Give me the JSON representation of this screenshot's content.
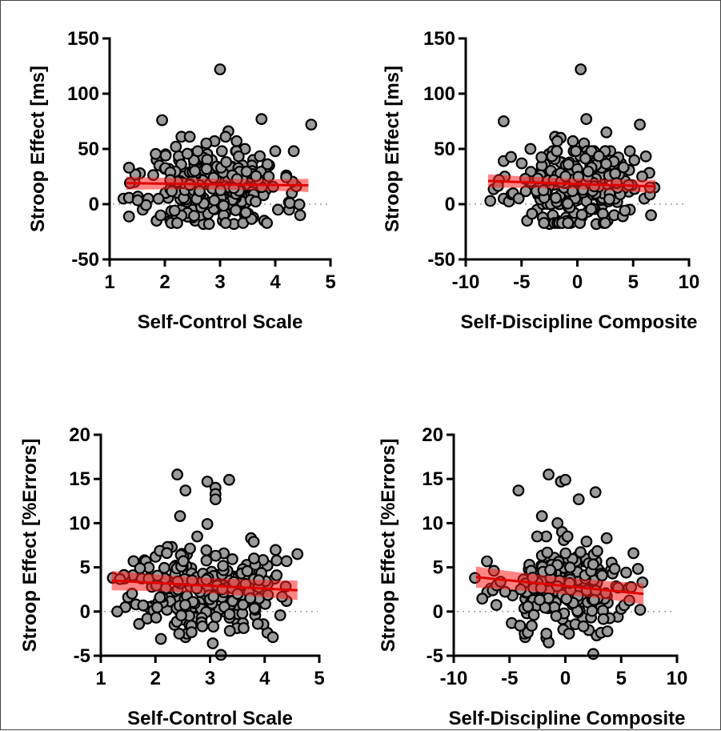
{
  "chart_data": [
    {
      "type": "scatter",
      "xlabel": "Self-Control Scale",
      "ylabel": "Stroop  Effect [ms]",
      "xlim": [
        1,
        5
      ],
      "ylim": [
        -50,
        150
      ],
      "xticks": [
        "1",
        "2",
        "3",
        "4",
        "5"
      ],
      "yticks": [
        "-50",
        "0",
        "50",
        "100",
        "150"
      ],
      "reference_line_y": 0,
      "regression": {
        "x": [
          1.3,
          4.6
        ],
        "y": [
          19,
          17
        ],
        "ci_halfwidth": 6
      },
      "n_points": 260,
      "points": [
        [
          3.0,
          122
        ],
        [
          1.95,
          76
        ],
        [
          3.75,
          77
        ],
        [
          4.65,
          72
        ],
        [
          3.15,
          66
        ],
        [
          3.1,
          61
        ],
        [
          2.3,
          61
        ],
        [
          2.45,
          61
        ],
        [
          2.9,
          57
        ],
        [
          3.3,
          57
        ],
        [
          2.75,
          55
        ],
        [
          4.0,
          48
        ],
        [
          2.2,
          52
        ],
        [
          3.45,
          50
        ],
        [
          1.85,
          40
        ],
        [
          2.85,
          40
        ],
        [
          3.6,
          40
        ],
        [
          1.9,
          35
        ],
        [
          2.0,
          32
        ],
        [
          4.2,
          26
        ],
        [
          1.25,
          5
        ],
        [
          1.7,
          5
        ],
        [
          1.55,
          28
        ],
        [
          2.1,
          -15
        ],
        [
          2.15,
          -10
        ],
        [
          1.85,
          -15
        ],
        [
          2.55,
          -15
        ],
        [
          2.7,
          -18
        ],
        [
          3.05,
          -15
        ],
        [
          3.25,
          -18
        ],
        [
          3.6,
          -12
        ],
        [
          3.8,
          -15
        ],
        [
          3.85,
          -17
        ],
        [
          4.45,
          -10
        ],
        [
          4.3,
          10
        ],
        [
          4.25,
          -5
        ],
        [
          1.45,
          20
        ],
        [
          1.6,
          -5
        ],
        [
          2.35,
          -2
        ],
        [
          2.5,
          -12
        ],
        [
          2.65,
          -10
        ],
        [
          3.45,
          -10
        ],
        [
          4.05,
          -5
        ],
        [
          2.8,
          -18
        ]
      ],
      "seed": 11
    },
    {
      "type": "scatter",
      "xlabel": "Self-Discipline Composite",
      "ylabel": "Stroop Effect [ms]",
      "xlim": [
        -10,
        10
      ],
      "ylim": [
        -50,
        150
      ],
      "xticks": [
        "-10",
        "-5",
        "0",
        "5",
        "10"
      ],
      "yticks": [
        "-50",
        "0",
        "50",
        "100",
        "150"
      ],
      "reference_line_y": 0,
      "regression": {
        "x": [
          -8,
          7
        ],
        "y": [
          21,
          16
        ],
        "ci_halfwidth": 6
      },
      "n_points": 260,
      "points": [
        [
          0.3,
          122
        ],
        [
          -6.6,
          75
        ],
        [
          0.8,
          77
        ],
        [
          5.6,
          72
        ],
        [
          2.6,
          65
        ],
        [
          -2.0,
          61
        ],
        [
          -1.5,
          60
        ],
        [
          -1.8,
          57
        ],
        [
          -0.4,
          57
        ],
        [
          0.6,
          55
        ],
        [
          -4.2,
          50
        ],
        [
          4.7,
          48
        ],
        [
          -6.6,
          39
        ],
        [
          -6.5,
          25
        ],
        [
          -7.8,
          3
        ],
        [
          -6.6,
          5
        ],
        [
          -4.5,
          -15
        ],
        [
          -2.5,
          -18
        ],
        [
          -1.8,
          -15
        ],
        [
          -0.6,
          -17
        ],
        [
          1.7,
          -18
        ],
        [
          2.7,
          -15
        ],
        [
          6.6,
          -10
        ],
        [
          4.7,
          -5
        ],
        [
          6.0,
          5
        ],
        [
          6.9,
          15
        ],
        [
          3.7,
          33
        ],
        [
          3.9,
          37
        ],
        [
          -3.6,
          -5
        ],
        [
          -3.1,
          -12
        ],
        [
          -2.2,
          -10
        ],
        [
          -1.0,
          -12
        ],
        [
          3.3,
          -10
        ]
      ],
      "seed": 23
    },
    {
      "type": "scatter",
      "xlabel": "Self-Control Scale",
      "ylabel": "Stroop Effect [%Errors]",
      "xlim": [
        1,
        5
      ],
      "ylim": [
        -5,
        20
      ],
      "xticks": [
        "1",
        "2",
        "3",
        "4",
        "5"
      ],
      "yticks": [
        "-5",
        "0",
        "5",
        "10",
        "15",
        "20"
      ],
      "reference_line_y": 0,
      "regression": {
        "x": [
          1.2,
          4.6
        ],
        "y": [
          3.5,
          2.4
        ],
        "ci_halfwidth": 1.1
      },
      "n_points": 260,
      "points": [
        [
          2.4,
          15.5
        ],
        [
          2.95,
          14.7
        ],
        [
          3.1,
          14.0
        ],
        [
          3.35,
          14.9
        ],
        [
          3.1,
          13.3
        ],
        [
          3.1,
          12.7
        ],
        [
          2.55,
          13.7
        ],
        [
          2.45,
          10.8
        ],
        [
          2.95,
          9.9
        ],
        [
          3.75,
          8.3
        ],
        [
          3.8,
          7.9
        ],
        [
          2.3,
          7.3
        ],
        [
          1.8,
          5.8
        ],
        [
          1.6,
          5.7
        ],
        [
          4.6,
          6.5
        ],
        [
          4.4,
          5.7
        ],
        [
          4.05,
          5.2
        ],
        [
          1.22,
          3.8
        ],
        [
          1.5,
          1.6
        ],
        [
          1.45,
          0.5
        ],
        [
          1.3,
          0.0
        ],
        [
          1.7,
          -1.4
        ],
        [
          1.85,
          -0.8
        ],
        [
          2.1,
          -3.1
        ],
        [
          2.55,
          -2.9
        ],
        [
          3.05,
          -3.6
        ],
        [
          3.2,
          -4.9
        ],
        [
          3.5,
          -1.2
        ],
        [
          4.05,
          -2.4
        ],
        [
          4.15,
          -2.9
        ],
        [
          3.6,
          -1.3
        ],
        [
          4.4,
          1.2
        ],
        [
          2.35,
          -1.5
        ]
      ],
      "seed": 37
    },
    {
      "type": "scatter",
      "xlabel": "Self-Discipline Composite",
      "ylabel": "Stroop Effect [%Errors]",
      "xlim": [
        -10,
        10
      ],
      "ylim": [
        -5,
        20
      ],
      "xticks": [
        "-10",
        "-5",
        "0",
        "5",
        "10"
      ],
      "yticks": [
        "-5",
        "0",
        "5",
        "10",
        "15",
        "20"
      ],
      "reference_line_y": 0,
      "regression": {
        "x": [
          -8,
          7
        ],
        "y": [
          3.9,
          2.0
        ],
        "ci_halfwidth": 1.2
      },
      "n_points": 260,
      "points": [
        [
          -1.5,
          15.5
        ],
        [
          -0.4,
          14.7
        ],
        [
          0.0,
          14.9
        ],
        [
          2.7,
          13.5
        ],
        [
          -4.2,
          13.7
        ],
        [
          1.2,
          12.7
        ],
        [
          -2.1,
          10.8
        ],
        [
          -0.7,
          10.0
        ],
        [
          -0.3,
          9.0
        ],
        [
          3.7,
          8.3
        ],
        [
          6.1,
          6.6
        ],
        [
          -8.1,
          3.8
        ],
        [
          -6.7,
          2.6
        ],
        [
          -7.0,
          2.2
        ],
        [
          -6.5,
          2.4
        ],
        [
          6.9,
          3.3
        ],
        [
          6.7,
          0.2
        ],
        [
          -4.8,
          -1.3
        ],
        [
          -3.6,
          -2.9
        ],
        [
          -1.7,
          -3.0
        ],
        [
          -1.5,
          -3.5
        ],
        [
          2.5,
          -4.8
        ],
        [
          2.8,
          -2.7
        ],
        [
          3.2,
          -2.4
        ],
        [
          4.7,
          -0.6
        ],
        [
          5.0,
          0.3
        ],
        [
          3.8,
          1.0
        ]
      ],
      "seed": 53
    }
  ]
}
